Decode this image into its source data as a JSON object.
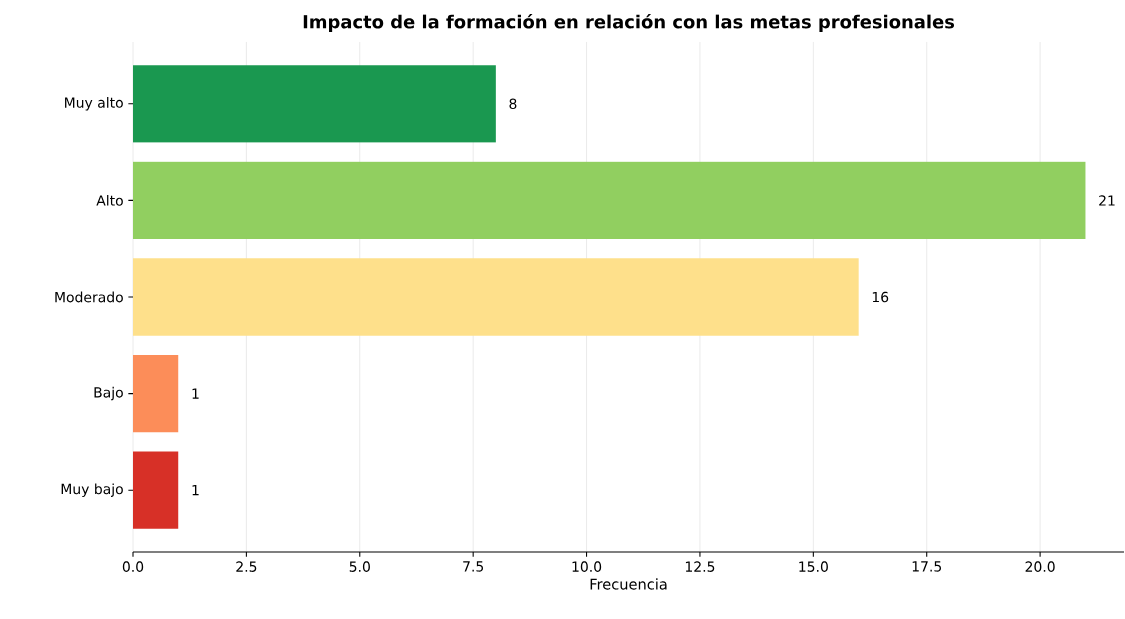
{
  "chart_data": {
    "type": "bar",
    "orientation": "horizontal",
    "title": "Impacto de la formación en relación con las metas profesionales",
    "xlabel": "Frecuencia",
    "categories": [
      "Muy alto",
      "Alto",
      "Moderado",
      "Bajo",
      "Muy bajo"
    ],
    "values": [
      8,
      21,
      16,
      1,
      1
    ],
    "colors": [
      "#1a9850",
      "#91cf60",
      "#fee08b",
      "#fc8d59",
      "#d73027"
    ],
    "xlim": [
      0,
      21.85
    ],
    "xticks": [
      {
        "value": 0,
        "label": "0.0"
      },
      {
        "value": 2.5,
        "label": "2.5"
      },
      {
        "value": 5,
        "label": "5.0"
      },
      {
        "value": 7.5,
        "label": "7.5"
      },
      {
        "value": 10,
        "label": "10.0"
      },
      {
        "value": 12.5,
        "label": "12.5"
      },
      {
        "value": 15,
        "label": "15.0"
      },
      {
        "value": 17.5,
        "label": "17.5"
      },
      {
        "value": 20,
        "label": "20.0"
      }
    ],
    "grid": "x",
    "data_labels": true
  }
}
